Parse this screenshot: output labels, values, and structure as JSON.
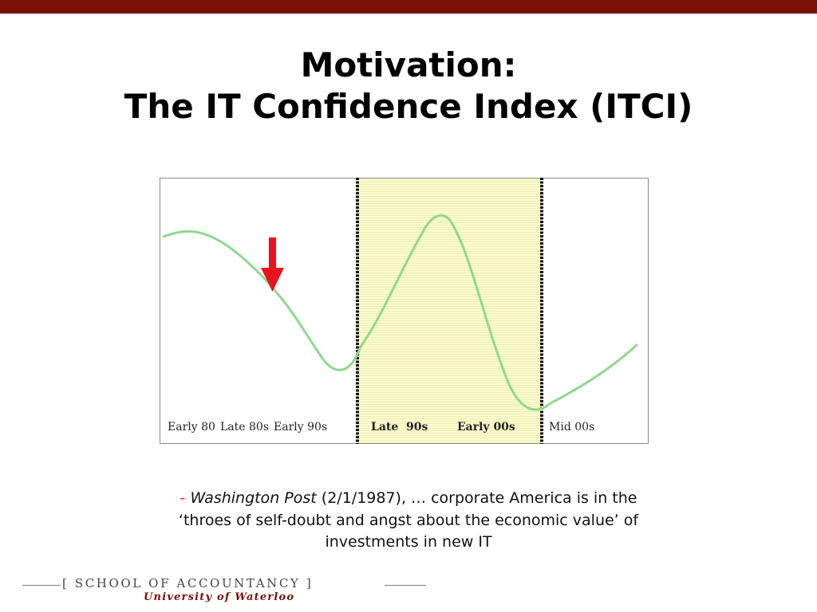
{
  "slide": {
    "title_line1": "Motivation:",
    "title_line2": "The IT Confidence Index (ITCI)",
    "accent_color": "#7a1108"
  },
  "chart_data": {
    "type": "line",
    "curve_color": "#8fd88f",
    "highlight_color": "#fbfbcf",
    "arrow_color": "#e8141b",
    "x_tick_labels": [
      "Early 80",
      "Late 80s",
      "Early 90s",
      "Late  90s",
      "Early 00s",
      "Mid 00s"
    ],
    "highlight_period": [
      "Late  90s",
      "Early 00s"
    ],
    "arrow": {
      "direction": "down",
      "at_period": "Late 80s"
    }
  },
  "quote": {
    "dash": "-",
    "source": "Washington Post",
    "date": "(2/1/1987),",
    "line1_rest": "… corporate America is in the",
    "line2": "‘throes of self-doubt and angst about the economic value’ of",
    "line3": "investments in new IT"
  },
  "footer": {
    "school_left_bracket": "[",
    "school_name": "SCHOOL OF ACCOUNTANCY",
    "school_right_bracket": "]",
    "university": "University of Waterloo"
  }
}
